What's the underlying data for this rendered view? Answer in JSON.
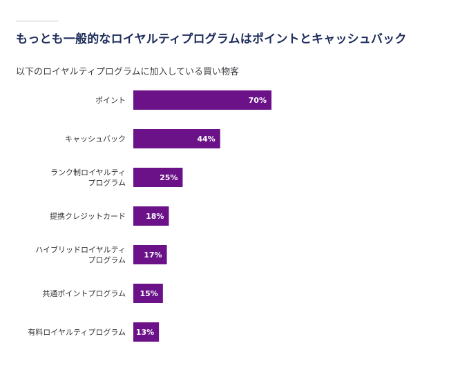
{
  "title": "もっとも一般的なロイヤルティプログラムはポイントとキャッシュバック",
  "subtitle": "以下のロイヤルティプログラムに加入している買い物客",
  "colors": {
    "bar": "#6b1289",
    "title": "#1c2b5a",
    "value_text": "#ffffff"
  },
  "chart_data": {
    "type": "bar",
    "orientation": "horizontal",
    "categories": [
      [
        "ポイント"
      ],
      [
        "キャッシュバック"
      ],
      [
        "ランク制ロイヤルティ",
        "プログラム"
      ],
      [
        "提携クレジットカード"
      ],
      [
        "ハイブリッドロイヤルティ",
        "プログラム"
      ],
      [
        "共通ポイントプログラム"
      ],
      [
        "有料ロイヤルティプログラム"
      ]
    ],
    "values": [
      70,
      44,
      25,
      18,
      17,
      15,
      13
    ],
    "value_labels": [
      "70%",
      "44%",
      "25%",
      "18%",
      "17%",
      "15%",
      "13%"
    ],
    "xlim": [
      0,
      100
    ],
    "grid": false,
    "legend": "none"
  }
}
